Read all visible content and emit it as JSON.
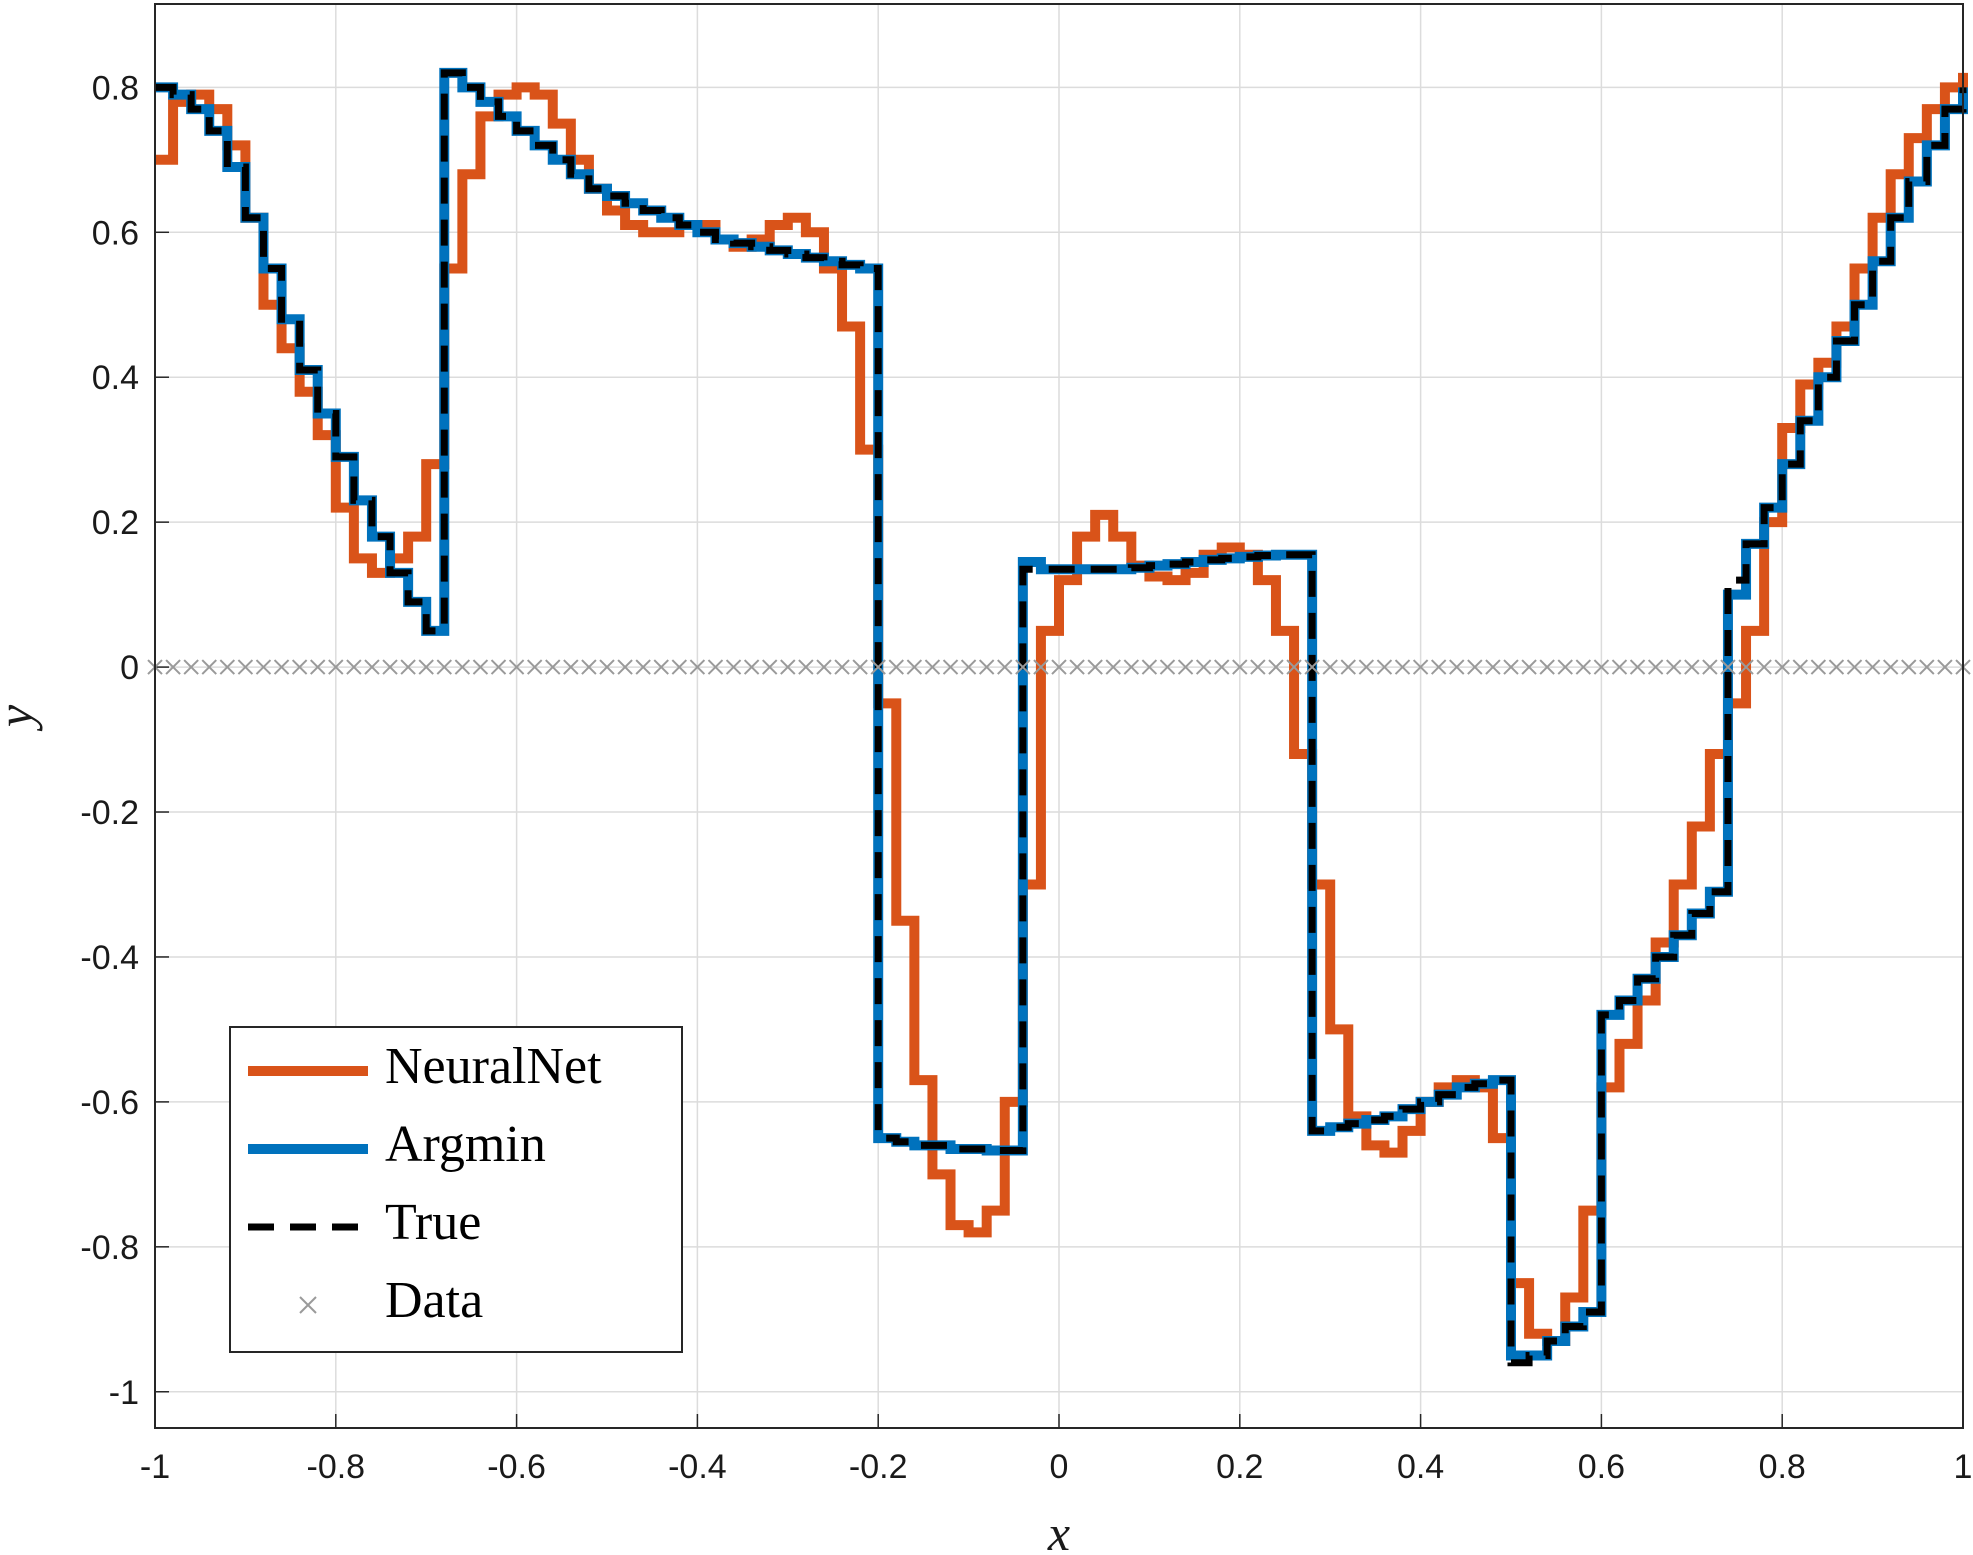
{
  "chart_data": {
    "type": "stairs",
    "xlabel": "x",
    "ylabel": "y",
    "xlim": [
      -1,
      1
    ],
    "ylim": [
      -1.05,
      0.915
    ],
    "xticks": [
      -1,
      -0.8,
      -0.6,
      -0.4,
      -0.2,
      0,
      0.2,
      0.4,
      0.6,
      0.8,
      1
    ],
    "yticks": [
      -1,
      -0.8,
      -0.6,
      -0.4,
      -0.2,
      0,
      0.2,
      0.4,
      0.6,
      0.8
    ],
    "grid": true,
    "legend": "southwest",
    "x": [
      -1,
      -0.98,
      -0.96,
      -0.94,
      -0.92,
      -0.9,
      -0.88,
      -0.86,
      -0.84,
      -0.82,
      -0.8,
      -0.78,
      -0.76,
      -0.74,
      -0.72,
      -0.7,
      -0.68,
      -0.66,
      -0.64,
      -0.62,
      -0.6,
      -0.58,
      -0.56,
      -0.54,
      -0.52,
      -0.5,
      -0.48,
      -0.46,
      -0.44,
      -0.42,
      -0.4,
      -0.38,
      -0.36,
      -0.34,
      -0.32,
      -0.3,
      -0.28,
      -0.26,
      -0.24,
      -0.22,
      -0.2,
      -0.18,
      -0.16,
      -0.14,
      -0.12,
      -0.1,
      -0.08,
      -0.06,
      -0.04,
      -0.02,
      0,
      0.02,
      0.04,
      0.06,
      0.08,
      0.1,
      0.12,
      0.14,
      0.16,
      0.18,
      0.2,
      0.22,
      0.24,
      0.26,
      0.28,
      0.3,
      0.32,
      0.34,
      0.36,
      0.38,
      0.4,
      0.42,
      0.44,
      0.46,
      0.48,
      0.5,
      0.52,
      0.54,
      0.56,
      0.58,
      0.6,
      0.62,
      0.64,
      0.66,
      0.68,
      0.7,
      0.72,
      0.74,
      0.76,
      0.78,
      0.8,
      0.82,
      0.84,
      0.86,
      0.88,
      0.9,
      0.92,
      0.94,
      0.96,
      0.98,
      1
    ],
    "series": [
      {
        "name": "NeuralNet",
        "color": "#D95319",
        "style": "solid",
        "values": [
          0.7,
          0.78,
          0.79,
          0.77,
          0.72,
          0.62,
          0.5,
          0.44,
          0.38,
          0.32,
          0.22,
          0.15,
          0.13,
          0.15,
          0.18,
          0.28,
          0.55,
          0.68,
          0.76,
          0.79,
          0.8,
          0.79,
          0.75,
          0.7,
          0.66,
          0.63,
          0.61,
          0.6,
          0.6,
          0.61,
          0.61,
          0.59,
          0.58,
          0.59,
          0.61,
          0.62,
          0.6,
          0.55,
          0.47,
          0.3,
          -0.05,
          -0.35,
          -0.57,
          -0.7,
          -0.77,
          -0.78,
          -0.75,
          -0.6,
          -0.3,
          0.05,
          0.12,
          0.18,
          0.21,
          0.18,
          0.14,
          0.125,
          0.12,
          0.13,
          0.155,
          0.165,
          0.155,
          0.12,
          0.05,
          -0.12,
          -0.3,
          -0.5,
          -0.62,
          -0.66,
          -0.67,
          -0.64,
          -0.6,
          -0.58,
          -0.57,
          -0.58,
          -0.65,
          -0.85,
          -0.92,
          -0.93,
          -0.87,
          -0.75,
          -0.58,
          -0.52,
          -0.46,
          -0.38,
          -0.3,
          -0.22,
          -0.12,
          -0.05,
          0.05,
          0.2,
          0.33,
          0.39,
          0.42,
          0.47,
          0.55,
          0.62,
          0.68,
          0.73,
          0.77,
          0.8,
          0.82
        ]
      },
      {
        "name": "Argmin",
        "color": "#0072BD",
        "style": "solid",
        "values": [
          0.8,
          0.79,
          0.77,
          0.74,
          0.69,
          0.62,
          0.55,
          0.48,
          0.41,
          0.35,
          0.29,
          0.23,
          0.18,
          0.13,
          0.09,
          0.05,
          0.82,
          0.8,
          0.78,
          0.76,
          0.74,
          0.72,
          0.7,
          0.68,
          0.66,
          0.65,
          0.64,
          0.63,
          0.62,
          0.61,
          0.6,
          0.59,
          0.585,
          0.58,
          0.575,
          0.57,
          0.565,
          0.56,
          0.555,
          0.55,
          -0.65,
          -0.655,
          -0.66,
          -0.66,
          -0.665,
          -0.665,
          -0.667,
          -0.667,
          0.145,
          0.135,
          0.135,
          0.135,
          0.135,
          0.135,
          0.137,
          0.14,
          0.142,
          0.145,
          0.148,
          0.15,
          0.152,
          0.154,
          0.155,
          0.155,
          -0.64,
          -0.635,
          -0.63,
          -0.625,
          -0.62,
          -0.61,
          -0.6,
          -0.59,
          -0.58,
          -0.575,
          -0.57,
          -0.95,
          -0.95,
          -0.93,
          -0.91,
          -0.89,
          -0.48,
          -0.46,
          -0.43,
          -0.4,
          -0.37,
          -0.34,
          -0.31,
          0.1,
          0.17,
          0.22,
          0.28,
          0.34,
          0.4,
          0.45,
          0.5,
          0.56,
          0.62,
          0.67,
          0.72,
          0.77,
          0.8
        ]
      },
      {
        "name": "True",
        "color": "#000000",
        "style": "dashed",
        "values": [
          0.8,
          0.79,
          0.77,
          0.74,
          0.69,
          0.62,
          0.55,
          0.48,
          0.41,
          0.35,
          0.29,
          0.23,
          0.18,
          0.13,
          0.09,
          0.05,
          0.82,
          0.8,
          0.78,
          0.76,
          0.74,
          0.72,
          0.7,
          0.68,
          0.66,
          0.65,
          0.64,
          0.63,
          0.62,
          0.61,
          0.6,
          0.59,
          0.585,
          0.58,
          0.575,
          0.57,
          0.565,
          0.56,
          0.555,
          0.55,
          -0.65,
          -0.655,
          -0.66,
          -0.66,
          -0.665,
          -0.665,
          -0.667,
          -0.667,
          0.135,
          0.135,
          0.135,
          0.135,
          0.135,
          0.135,
          0.137,
          0.14,
          0.142,
          0.145,
          0.148,
          0.15,
          0.152,
          0.154,
          0.155,
          0.155,
          -0.64,
          -0.635,
          -0.63,
          -0.625,
          -0.62,
          -0.61,
          -0.6,
          -0.59,
          -0.58,
          -0.575,
          -0.57,
          -0.96,
          -0.95,
          -0.93,
          -0.91,
          -0.89,
          -0.48,
          -0.46,
          -0.43,
          -0.4,
          -0.37,
          -0.34,
          -0.31,
          0.12,
          0.17,
          0.22,
          0.28,
          0.34,
          0.4,
          0.45,
          0.5,
          0.56,
          0.62,
          0.67,
          0.72,
          0.77,
          0.8
        ]
      },
      {
        "name": "Data",
        "color": "#9a9a9a",
        "style": "marker",
        "values": [
          0,
          0,
          0,
          0,
          0,
          0,
          0,
          0,
          0,
          0,
          0,
          0,
          0,
          0,
          0,
          0,
          0,
          0,
          0,
          0,
          0,
          0,
          0,
          0,
          0,
          0,
          0,
          0,
          0,
          0,
          0,
          0,
          0,
          0,
          0,
          0,
          0,
          0,
          0,
          0,
          0,
          0,
          0,
          0,
          0,
          0,
          0,
          0,
          0,
          0,
          0,
          0,
          0,
          0,
          0,
          0,
          0,
          0,
          0,
          0,
          0,
          0,
          0,
          0,
          0,
          0,
          0,
          0,
          0,
          0,
          0,
          0,
          0,
          0,
          0,
          0,
          0,
          0,
          0,
          0,
          0,
          0,
          0,
          0,
          0,
          0,
          0,
          0,
          0,
          0,
          0,
          0,
          0,
          0,
          0,
          0,
          0,
          0,
          0,
          0,
          0
        ]
      }
    ]
  }
}
